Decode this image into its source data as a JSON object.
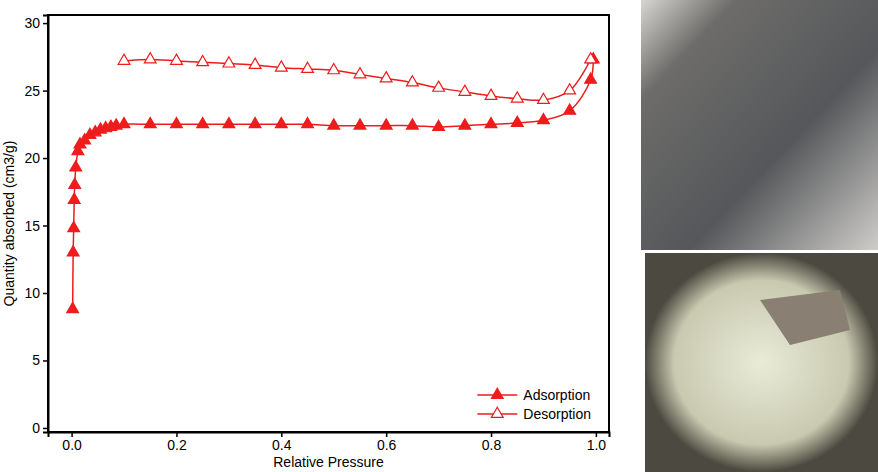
{
  "chart_data": {
    "type": "line",
    "x_label": "Relative Pressure",
    "y_label": "Quantity absorbed (cm3/g)",
    "xlim": [
      -0.045,
      1.025
    ],
    "ylim": [
      -0.3,
      30.6
    ],
    "xticks": [
      {
        "value": 0,
        "label": "0.0"
      },
      {
        "value": 0.2,
        "label": "0.2"
      },
      {
        "value": 0.4,
        "label": "0.4"
      },
      {
        "value": 0.6,
        "label": "0.6"
      },
      {
        "value": 0.8,
        "label": "0.8"
      },
      {
        "value": 1,
        "label": "1.0"
      }
    ],
    "yticks": [
      0,
      5,
      10,
      15,
      20,
      25,
      30
    ],
    "grid": false,
    "legend": "lower right",
    "series": [
      {
        "name": "Adsorption",
        "color": "#ee1c1c",
        "marker": "triangle",
        "line_style": "solid",
        "x": [
          0.002,
          0.003,
          0.004,
          0.005,
          0.006,
          0.008,
          0.012,
          0.016,
          0.025,
          0.035,
          0.045,
          0.055,
          0.065,
          0.075,
          0.085,
          0.1,
          0.15,
          0.2,
          0.25,
          0.3,
          0.35,
          0.4,
          0.45,
          0.5,
          0.55,
          0.6,
          0.65,
          0.7,
          0.75,
          0.8,
          0.85,
          0.9,
          0.95,
          0.99,
          0.995
        ],
        "values": [
          8.8,
          13.0,
          14.8,
          16.9,
          18.0,
          19.3,
          20.5,
          21.0,
          21.3,
          21.7,
          21.9,
          22.1,
          22.2,
          22.3,
          22.4,
          22.5,
          22.5,
          22.5,
          22.5,
          22.5,
          22.5,
          22.5,
          22.5,
          22.4,
          22.4,
          22.4,
          22.4,
          22.3,
          22.4,
          22.5,
          22.6,
          22.8,
          23.5,
          25.8,
          27.3
        ]
      },
      {
        "name": "Desorption",
        "color": "#ee1c1c",
        "marker": "triangle-open",
        "line_style": "solid",
        "x": [
          0.1,
          0.15,
          0.2,
          0.25,
          0.3,
          0.35,
          0.4,
          0.45,
          0.5,
          0.55,
          0.6,
          0.65,
          0.7,
          0.75,
          0.8,
          0.85,
          0.9,
          0.95,
          0.99
        ],
        "values": [
          27.2,
          27.3,
          27.2,
          27.1,
          27.0,
          26.9,
          26.7,
          26.6,
          26.5,
          26.2,
          25.9,
          25.6,
          25.2,
          24.9,
          24.6,
          24.4,
          24.3,
          25.0,
          27.3
        ]
      }
    ]
  }
}
